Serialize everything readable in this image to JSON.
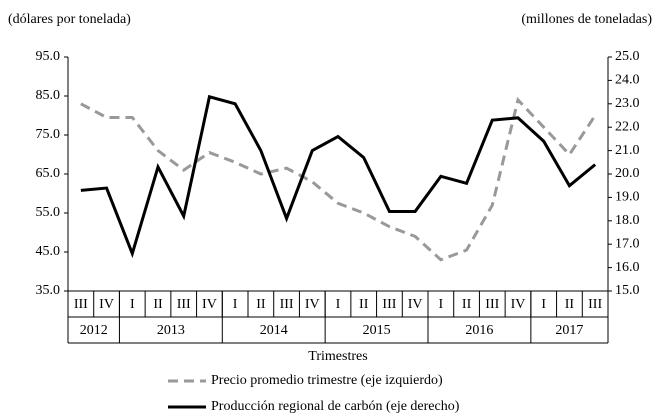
{
  "chart_data": {
    "type": "line",
    "ylabel": "(dólares por tonelada)",
    "y2label": "(millones  de toneladas)",
    "xlabel": "Trimestres",
    "categories": [
      "III",
      "IV",
      "I",
      "II",
      "III",
      "IV",
      "I",
      "II",
      "III",
      "IV",
      "I",
      "II",
      "III",
      "IV",
      "I",
      "II",
      "III",
      "IV",
      "I",
      "II",
      "III"
    ],
    "year_groups": [
      {
        "label": "2012",
        "count": 2
      },
      {
        "label": "2013",
        "count": 4
      },
      {
        "label": "2014",
        "count": 4
      },
      {
        "label": "2015",
        "count": 4
      },
      {
        "label": "2016",
        "count": 4
      },
      {
        "label": "2017",
        "count": 3
      }
    ],
    "ylim": [
      35,
      95
    ],
    "yticks": [
      {
        "value": 35,
        "label": "35.0"
      },
      {
        "value": 45,
        "label": "45.0"
      },
      {
        "value": 55,
        "label": "55.0"
      },
      {
        "value": 65,
        "label": "65.0"
      },
      {
        "value": 75,
        "label": "75.0"
      },
      {
        "value": 85,
        "label": "85.0"
      },
      {
        "value": 95,
        "label": "95.0"
      }
    ],
    "y2lim": [
      15,
      25
    ],
    "y2ticks": [
      {
        "value": 15,
        "label": "15.0"
      },
      {
        "value": 16,
        "label": "16.0"
      },
      {
        "value": 17,
        "label": "17.0"
      },
      {
        "value": 18,
        "label": "18.0"
      },
      {
        "value": 19,
        "label": "19.0"
      },
      {
        "value": 20,
        "label": "20.0"
      },
      {
        "value": 21,
        "label": "21.0"
      },
      {
        "value": 22,
        "label": "22.0"
      },
      {
        "value": 23,
        "label": "23.0"
      },
      {
        "value": 24,
        "label": "24.0"
      },
      {
        "value": 25,
        "label": "25.0"
      }
    ],
    "grid": false,
    "series": [
      {
        "name": "Precio promedio trimestre (eje izquierdo)",
        "color": "#999999",
        "dashed": true,
        "values": [
          83,
          79.5,
          79.5,
          71,
          66,
          70.5,
          68,
          65,
          66.5,
          63,
          57.5,
          55,
          51.5,
          49,
          43,
          45.5,
          57,
          84,
          77,
          70,
          80
        ]
      },
      {
        "name": "Producción regional de carbón (eje derecho)",
        "color": "#000000",
        "dashed": false,
        "axis": "y2",
        "values": [
          19.3,
          19.4,
          16.6,
          20.3,
          18.2,
          23.3,
          23.0,
          21.0,
          18.1,
          21.0,
          21.6,
          20.7,
          18.4,
          18.4,
          19.9,
          19.6,
          22.3,
          22.4,
          21.4,
          19.5,
          20.4
        ]
      }
    ]
  }
}
